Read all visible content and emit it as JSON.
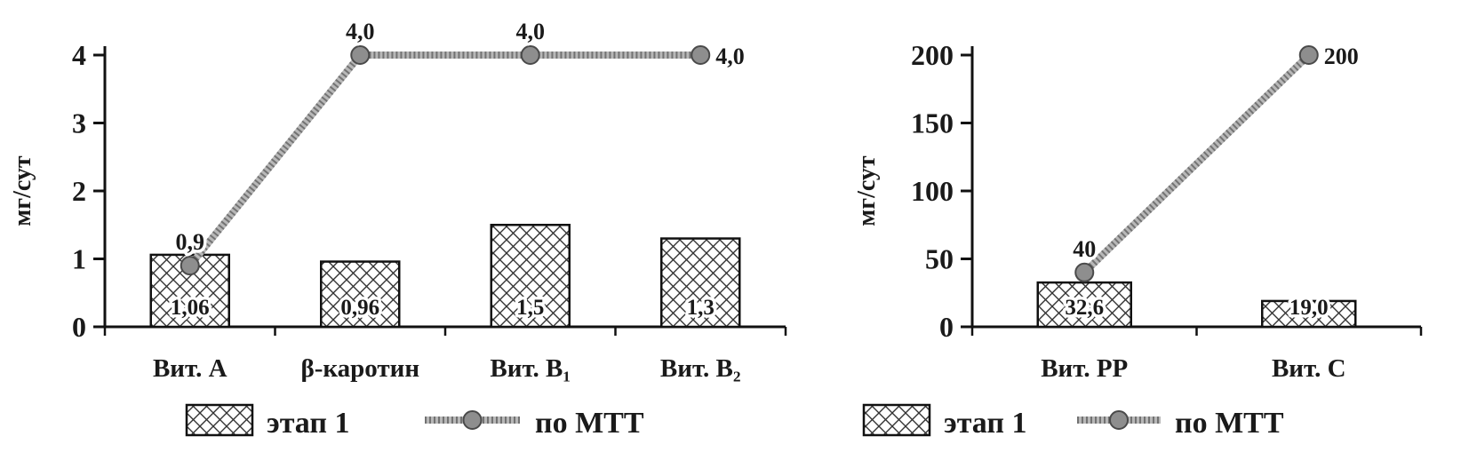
{
  "figure": {
    "background": "#ffffff",
    "text_color": "#1a1a1a"
  },
  "chart_data": [
    {
      "type": "bar",
      "subtype": "bar-with-line-overlay",
      "title": "",
      "xlabel": "",
      "ylabel": "мг/сут",
      "ylim": [
        0,
        4
      ],
      "yticks": [
        "0",
        "1",
        "2",
        "3",
        "4"
      ],
      "ytick_values": [
        0,
        1,
        2,
        3,
        4
      ],
      "categories": [
        "Вит. А",
        "β-каротин",
        "Вит. В₁",
        "Вит. В₂"
      ],
      "series": [
        {
          "name": "этап 1",
          "kind": "bar",
          "values": [
            1.06,
            0.96,
            1.5,
            1.3
          ],
          "labels": [
            "1,06",
            "0,96",
            "1,5",
            "1,3"
          ]
        },
        {
          "name": "по МТТ",
          "kind": "line",
          "values": [
            0.9,
            4.0,
            4.0,
            4.0
          ],
          "labels": [
            "0,9",
            "4,0",
            "4,0",
            "4,0"
          ],
          "label_pos": [
            "above",
            "above",
            "above",
            "right"
          ]
        }
      ],
      "legend": [
        "этап 1",
        "по МТТ"
      ],
      "legend_position": "bottom",
      "grid": false
    },
    {
      "type": "bar",
      "subtype": "bar-with-line-overlay",
      "title": "",
      "xlabel": "",
      "ylabel": "мг/сут",
      "ylim": [
        0,
        200
      ],
      "yticks": [
        "0",
        "50",
        "100",
        "150",
        "200"
      ],
      "ytick_values": [
        0,
        50,
        100,
        150,
        200
      ],
      "categories": [
        "Вит. РР",
        "Вит. С"
      ],
      "series": [
        {
          "name": "этап 1",
          "kind": "bar",
          "values": [
            32.6,
            19.0
          ],
          "labels": [
            "32,6",
            "19,0"
          ]
        },
        {
          "name": "по МТТ",
          "kind": "line",
          "values": [
            40,
            200
          ],
          "labels": [
            "40",
            "200"
          ],
          "label_pos": [
            "above",
            "right"
          ]
        }
      ],
      "legend": [
        "этап 1",
        "по МТТ"
      ],
      "legend_position": "bottom",
      "grid": false
    }
  ],
  "colors": {
    "axis": "#111111",
    "bar_fill": "#ffffff",
    "bar_hatch": "#333333",
    "bar_border": "#111111",
    "line_base": "#b8b8b8",
    "line_texture": "#555555",
    "marker_fill": "#8e8e8e",
    "marker_border": "#4a4a4a",
    "label": "#1a1a1a"
  }
}
